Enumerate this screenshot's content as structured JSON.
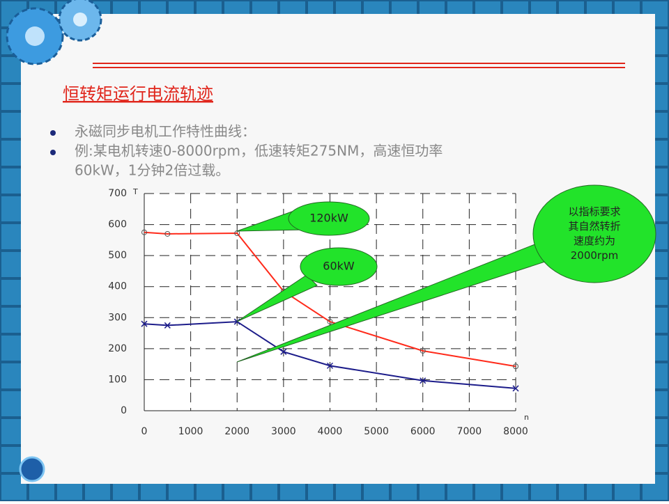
{
  "title": "恒转矩运行电流轨迹",
  "bullets": [
    [
      "永磁同步电机工作特性曲线："
    ],
    [
      "例:某电机转速0-8000rpm，低速转矩275NM，高速恒功率",
      "60kW，1分钟2倍过载。"
    ]
  ],
  "chart_data": {
    "type": "line",
    "x_label": "n",
    "y_label": "T",
    "xlim": [
      0,
      8000
    ],
    "ylim": [
      0,
      700
    ],
    "xticks": [
      0,
      1000,
      2000,
      3000,
      4000,
      5000,
      6000,
      7000,
      8000
    ],
    "yticks": [
      0,
      100,
      200,
      300,
      400,
      500,
      600,
      700
    ],
    "grid": true,
    "x": [
      0,
      500,
      2000,
      3000,
      4000,
      6000,
      8000
    ],
    "series": [
      {
        "color": "#ff2a1a",
        "marker": "circle",
        "values": [
          575,
          570,
          572,
          385,
          287,
          193,
          143
        ]
      },
      {
        "color": "#1c1c8a",
        "marker": "x",
        "values": [
          280,
          275,
          287,
          190,
          145,
          97,
          72
        ]
      }
    ],
    "annotations": [
      {
        "lines": [
          "120kW"
        ]
      },
      {
        "lines": [
          "60kW"
        ]
      },
      {
        "lines": [
          "以指标要求",
          "其自然转折",
          "速度约为",
          "2000rpm"
        ]
      }
    ]
  }
}
